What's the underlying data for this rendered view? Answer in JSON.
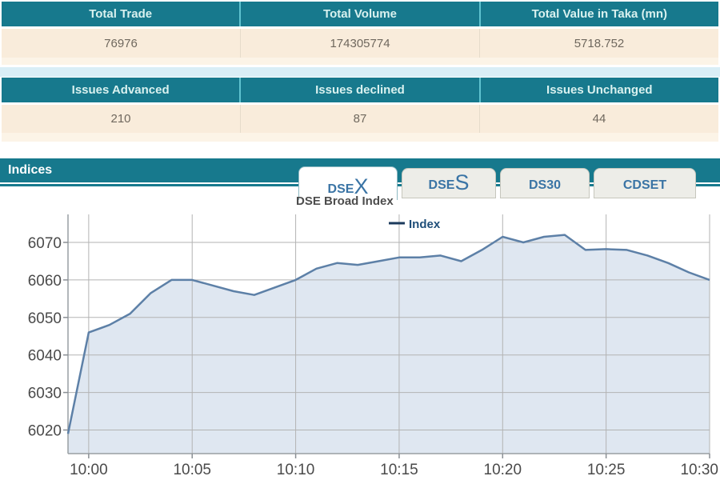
{
  "colors": {
    "teal_header": "#17798d",
    "header_text": "#d9f1ef",
    "cream_row": "#f9ecdb",
    "band_blue": "#d9eef6",
    "value_text": "#6f685e",
    "tab_text_blue": "#3a74a5",
    "chart_line": "#5d80a7",
    "chart_fill": "#dfe7f1",
    "grid_line": "#b3b3b3",
    "legend_text": "#1f4e79",
    "title_text": "#4d4d4d"
  },
  "tables": [
    {
      "headers": [
        "Total Trade",
        "Total Volume",
        "Total Value in Taka (mn)"
      ],
      "values": [
        "76976",
        "174305774",
        "5718.752"
      ]
    },
    {
      "headers": [
        "Issues Advanced",
        "Issues declined",
        "Issues Unchanged"
      ],
      "values": [
        "210",
        "87",
        "44"
      ]
    }
  ],
  "indices": {
    "title": "Indices",
    "tabs": [
      {
        "label": "DSEX",
        "prefix": "DSE",
        "accent": "X",
        "active": true
      },
      {
        "label": "DSES",
        "prefix": "DSE",
        "accent": "S",
        "active": false
      },
      {
        "label": "DS30",
        "prefix": "DS30",
        "accent": "",
        "active": false
      },
      {
        "label": "CDSET",
        "prefix": "CDSET",
        "accent": "",
        "active": false
      }
    ]
  },
  "chart_data": {
    "type": "area",
    "title": "DSE Broad Index",
    "legend": [
      "Index"
    ],
    "legend_position": "top-center",
    "grid": true,
    "x": [
      "9:59",
      "10:00",
      "10:01",
      "10:02",
      "10:03",
      "10:04",
      "10:05",
      "10:06",
      "10:07",
      "10:08",
      "10:09",
      "10:10",
      "10:11",
      "10:12",
      "10:13",
      "10:14",
      "10:15",
      "10:16",
      "10:17",
      "10:18",
      "10:19",
      "10:20",
      "10:21",
      "10:22",
      "10:23",
      "10:24",
      "10:25",
      "10:26",
      "10:27",
      "10:28",
      "10:29",
      "10:30"
    ],
    "values": [
      6019,
      6046,
      6048,
      6051,
      6056.5,
      6060,
      6060,
      6058.5,
      6057,
      6056,
      6058,
      6060,
      6063,
      6064.5,
      6064,
      6065,
      6066,
      6066,
      6066.5,
      6065,
      6068,
      6071.5,
      6070,
      6071.5,
      6072,
      6068,
      6068.2,
      6068,
      6066.5,
      6064.5,
      6062,
      6060
    ],
    "xticks": [
      "10:00",
      "10:05",
      "10:10",
      "10:15",
      "10:20",
      "10:25",
      "10:30"
    ],
    "yticks": [
      6020,
      6030,
      6040,
      6050,
      6060,
      6070
    ],
    "ylim": [
      6013.7,
      6077.5
    ]
  }
}
